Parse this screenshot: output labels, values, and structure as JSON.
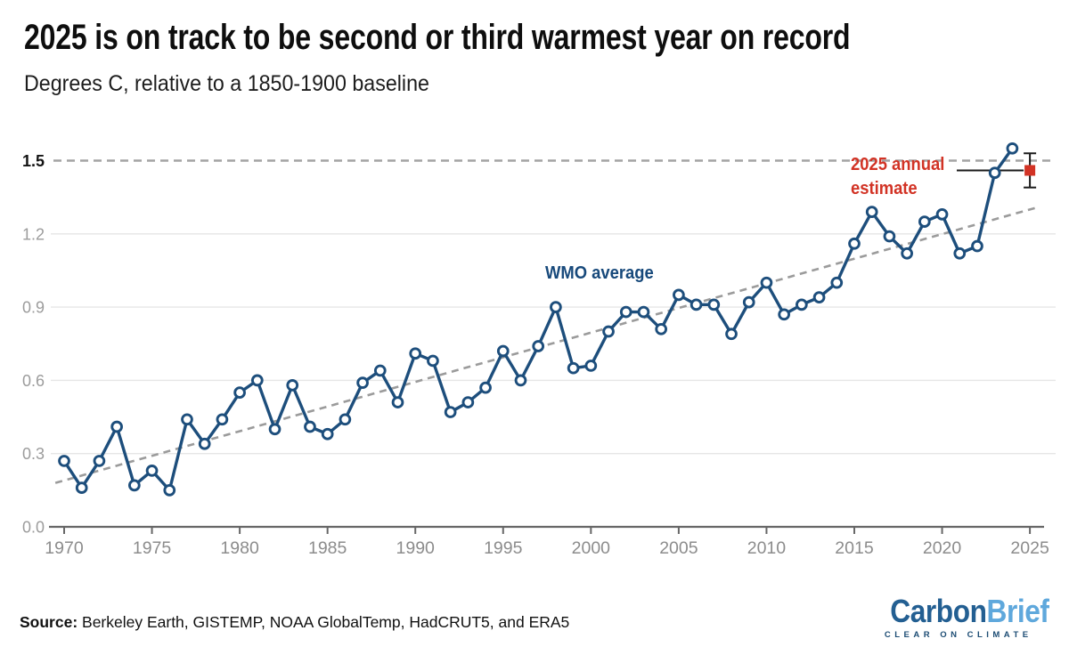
{
  "header": {
    "title": "2025 is on track to be second or third warmest year on record",
    "subtitle": "Degrees C, relative to a 1850-1900 baseline"
  },
  "annotations": {
    "wmo_label": "WMO average",
    "estimate_label": "2025 annual estimate"
  },
  "footer": {
    "source_label": "Source:",
    "source_text": " Berkeley Earth, GISTEMP, NOAA GlobalTemp, HadCRUT5, and ERA5"
  },
  "logo": {
    "part1": "Carbon",
    "part2": "Brief",
    "tagline": "CLEAR ON CLIMATE"
  },
  "colors": {
    "line_blue": "#1d4e7c",
    "label_blue": "#17497b",
    "red": "#d23325",
    "grid_light": "#e6e6e6",
    "ref_dash": "#a3a3a3",
    "trend_dash": "#9b9b9b",
    "axis": "#676767",
    "x_tick_label": "#8c8c8c",
    "y_tick_label": "#9c9c9c",
    "y_tick_label_15": "#141414",
    "error_bar": "#1a1a1a"
  },
  "chart_data": {
    "type": "line",
    "title": "2025 is on track to be second or third warmest year on record",
    "ylabel": "Degrees C, relative to a 1850-1900 baseline",
    "x": [
      1970,
      1971,
      1972,
      1973,
      1974,
      1975,
      1976,
      1977,
      1978,
      1979,
      1980,
      1981,
      1982,
      1983,
      1984,
      1985,
      1986,
      1987,
      1988,
      1989,
      1990,
      1991,
      1992,
      1993,
      1994,
      1995,
      1996,
      1997,
      1998,
      1999,
      2000,
      2001,
      2002,
      2003,
      2004,
      2005,
      2006,
      2007,
      2008,
      2009,
      2010,
      2011,
      2012,
      2013,
      2014,
      2015,
      2016,
      2017,
      2018,
      2019,
      2020,
      2021,
      2022,
      2023,
      2024
    ],
    "series": [
      {
        "name": "WMO average",
        "values": [
          0.27,
          0.16,
          0.27,
          0.41,
          0.17,
          0.23,
          0.15,
          0.44,
          0.34,
          0.44,
          0.55,
          0.6,
          0.4,
          0.58,
          0.41,
          0.38,
          0.44,
          0.59,
          0.64,
          0.51,
          0.71,
          0.68,
          0.47,
          0.51,
          0.57,
          0.72,
          0.6,
          0.74,
          0.9,
          0.65,
          0.66,
          0.8,
          0.88,
          0.88,
          0.81,
          0.95,
          0.91,
          0.91,
          0.79,
          0.92,
          1.0,
          0.87,
          0.91,
          0.94,
          1.0,
          1.16,
          1.29,
          1.19,
          1.12,
          1.25,
          1.28,
          1.12,
          1.15,
          1.45,
          1.55
        ]
      }
    ],
    "estimate_2025": {
      "year": 2025,
      "value": 1.46,
      "low": 1.39,
      "high": 1.53,
      "label": "2025 annual estimate"
    },
    "trend_line": {
      "start_year": 1970,
      "start_value": 0.19,
      "end_year": 2025,
      "end_value": 1.3,
      "style": "dashed"
    },
    "reference_line": {
      "value": 1.5,
      "style": "dashed"
    },
    "xticks": [
      1970,
      1975,
      1980,
      1985,
      1990,
      1995,
      2000,
      2005,
      2010,
      2015,
      2020,
      2025
    ],
    "ytick_labels": [
      "0.0",
      "0.3",
      "0.6",
      "0.9",
      "1.2",
      "1.5"
    ],
    "yticks": [
      0.0,
      0.3,
      0.6,
      0.9,
      1.2,
      1.5
    ],
    "ylim": [
      0,
      1.62
    ],
    "xlabel": "",
    "grid": true,
    "legend_position": "none"
  }
}
